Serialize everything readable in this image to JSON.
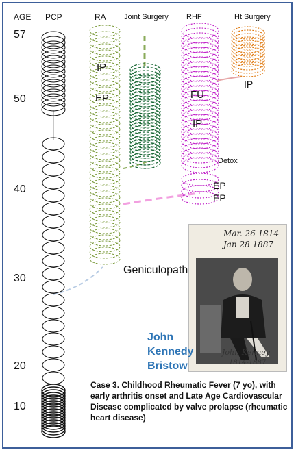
{
  "headers": {
    "age": "AGE",
    "pcp": "PCP",
    "ra": "RA",
    "joint_surgery": "Joint Surgery",
    "rhf": "RHF",
    "ht_surgery": "Ht Surgery"
  },
  "age_ticks": [
    "57",
    "50",
    "40",
    "30",
    "20",
    "10"
  ],
  "event_labels": {
    "ra_ip": "IP",
    "ra_ep": "EP",
    "rhf_fu": "FU",
    "rhf_ip": "IP",
    "detox": "Detox",
    "rhf_ep1": "EP",
    "rhf_ep2": "EP",
    "ht_ip": "IP",
    "geniculopathy": "Geniculopathy"
  },
  "photo": {
    "date_top": "Mar. 26 1814",
    "date_bottom": "Jan 28 1887",
    "signature": "John Kenney",
    "signature_dates": "1814-1887"
  },
  "patient_name": "John Kennedy Bristow",
  "caption": "Case 3.  Childhood Rheumatic Fever (7 yo), with early arthritis onset and Late Age Cardiovascular Disease complicated by valve prolapse (rheumatic heart disease)",
  "colors": {
    "pcp": "#111111",
    "ra": "#7a9a3a",
    "joint_surgery": "#1f6b3a",
    "rhf": "#c020c8",
    "ht_surgery": "#e07a10",
    "connector_gray": "#c8c8c8",
    "connector_blue": "#b8cce4",
    "connector_pink": "#f2a0e0",
    "connector_green": "#8aab5a",
    "connector_rose": "#e6a6a6",
    "name_blue": "#2e75b6",
    "frame": "#3d5f9a"
  }
}
